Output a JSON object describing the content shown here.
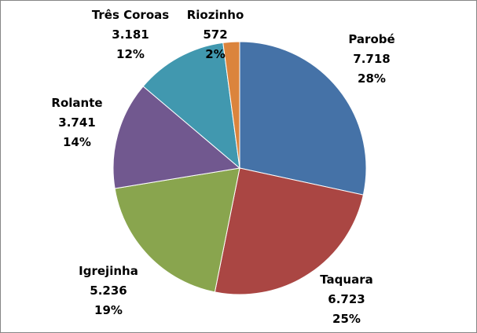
{
  "chart_data": {
    "type": "pie",
    "title": "",
    "start": "top",
    "direction": "clockwise",
    "slices": [
      {
        "label": "Parobé",
        "value_text": "7.718",
        "value": 7718,
        "percent": "28%",
        "color": "#4572A7"
      },
      {
        "label": "Taquara",
        "value_text": "6.723",
        "value": 6723,
        "percent": "25%",
        "color": "#AA4643"
      },
      {
        "label": "Igrejinha",
        "value_text": "5.236",
        "value": 5236,
        "percent": "19%",
        "color": "#89A54E"
      },
      {
        "label": "Rolante",
        "value_text": "3.741",
        "value": 3741,
        "percent": "14%",
        "color": "#71588F"
      },
      {
        "label": "Três Coroas",
        "value_text": "3.181",
        "value": 3181,
        "percent": "12%",
        "color": "#4198AF"
      },
      {
        "label": "Riozinho",
        "value_text": "572",
        "value": 572,
        "percent": "2%",
        "color": "#DB843D"
      }
    ]
  }
}
